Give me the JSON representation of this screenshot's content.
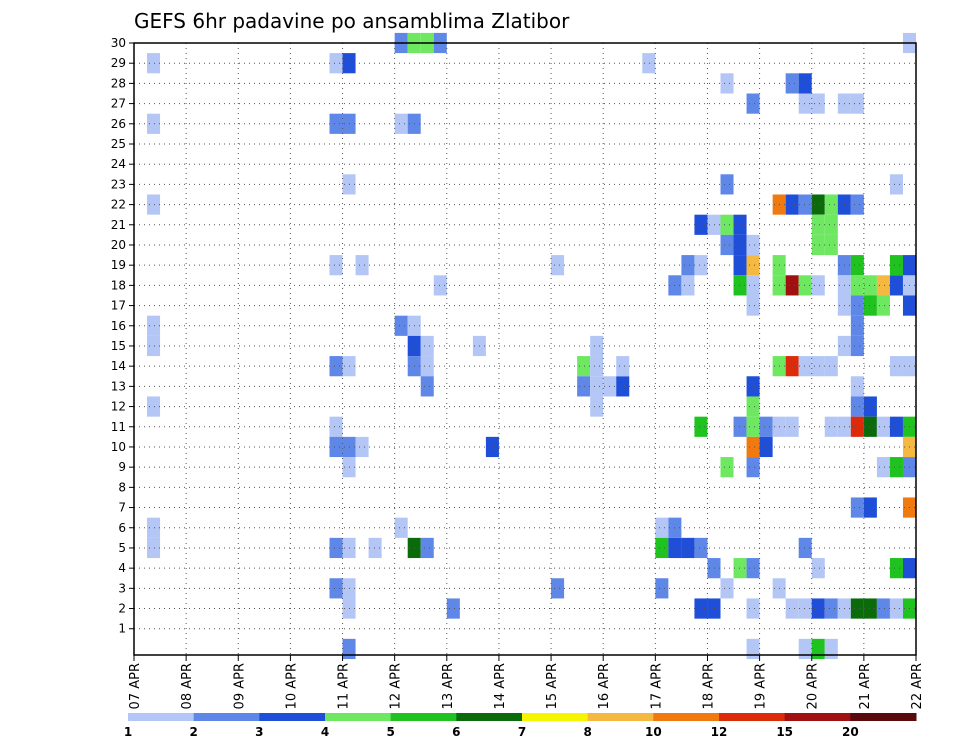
{
  "chart_data": {
    "type": "heatmap",
    "title": "GEFS 6hr padavine po ansamblima Zlatibor",
    "y_ticks": [
      "1",
      "2",
      "3",
      "4",
      "5",
      "6",
      "7",
      "8",
      "9",
      "10",
      "11",
      "12",
      "13",
      "14",
      "15",
      "16",
      "17",
      "18",
      "19",
      "20",
      "21",
      "22",
      "23",
      "24",
      "25",
      "26",
      "27",
      "28",
      "29",
      "30"
    ],
    "x_ticks": [
      "07 APR",
      "08 APR",
      "09 APR",
      "10 APR",
      "11 APR",
      "12 APR",
      "13 APR",
      "14 APR",
      "15 APR",
      "16 APR",
      "17 APR",
      "18 APR",
      "19 APR",
      "20 APR",
      "21 APR",
      "22 APR"
    ],
    "x_range_days": [
      7,
      22
    ],
    "y_range": [
      0,
      30
    ],
    "step_hours": 6,
    "grid": true,
    "colorbar": {
      "labels": [
        "1",
        "2",
        "3",
        "4",
        "5",
        "6",
        "7",
        "8",
        "10",
        "12",
        "15",
        "20"
      ],
      "colors": [
        "#b3c6f5",
        "#5f87e8",
        "#1f4fd8",
        "#6ee860",
        "#1fc21f",
        "#0b6b0b",
        "#f5f500",
        "#f5b840",
        "#f07a10",
        "#dc2a0a",
        "#a01010",
        "#5a0a0a"
      ]
    },
    "cells": [
      [
        7.25,
        29,
        1
      ],
      [
        7.25,
        26,
        1
      ],
      [
        7.25,
        22,
        1
      ],
      [
        7.25,
        16,
        1
      ],
      [
        7.25,
        15,
        1
      ],
      [
        7.25,
        12,
        1
      ],
      [
        7.25,
        6,
        1
      ],
      [
        7.25,
        5,
        1
      ],
      [
        10.75,
        29,
        1
      ],
      [
        11.0,
        29,
        3
      ],
      [
        10.75,
        26,
        2
      ],
      [
        11.0,
        26,
        2
      ],
      [
        11.0,
        23,
        1
      ],
      [
        10.75,
        19,
        1
      ],
      [
        11.25,
        19,
        1
      ],
      [
        10.75,
        14,
        2
      ],
      [
        11.0,
        14,
        1
      ],
      [
        10.75,
        11,
        1
      ],
      [
        10.75,
        10,
        2
      ],
      [
        11.0,
        10,
        2
      ],
      [
        11.25,
        10,
        1
      ],
      [
        11.0,
        9,
        1
      ],
      [
        10.75,
        5,
        2
      ],
      [
        11.0,
        5,
        1
      ],
      [
        11.5,
        5,
        1
      ],
      [
        10.75,
        3,
        2
      ],
      [
        11.0,
        3,
        1
      ],
      [
        11.0,
        2,
        1
      ],
      [
        11.0,
        0,
        2
      ],
      [
        12.0,
        30,
        2
      ],
      [
        12.25,
        30,
        4
      ],
      [
        12.5,
        30,
        4
      ],
      [
        12.75,
        30,
        2
      ],
      [
        12.0,
        26,
        1
      ],
      [
        12.25,
        26,
        2
      ],
      [
        12.75,
        18,
        1
      ],
      [
        12.0,
        16,
        2
      ],
      [
        12.25,
        16,
        1
      ],
      [
        12.25,
        15,
        3
      ],
      [
        12.5,
        15,
        1
      ],
      [
        12.5,
        14,
        1
      ],
      [
        12.25,
        14,
        2
      ],
      [
        12.5,
        13,
        2
      ],
      [
        12.0,
        6,
        1
      ],
      [
        12.25,
        5,
        6
      ],
      [
        12.5,
        5,
        2
      ],
      [
        13.0,
        2,
        2
      ],
      [
        13.5,
        15,
        1
      ],
      [
        13.75,
        10,
        3
      ],
      [
        15.0,
        19,
        1
      ],
      [
        15.0,
        3,
        2
      ],
      [
        15.5,
        14,
        4
      ],
      [
        15.75,
        14,
        1
      ],
      [
        15.75,
        15,
        1
      ],
      [
        15.5,
        13,
        2
      ],
      [
        15.75,
        13,
        1
      ],
      [
        16.0,
        13,
        1
      ],
      [
        16.25,
        13,
        3
      ],
      [
        15.75,
        12,
        1
      ],
      [
        16.25,
        14,
        1
      ],
      [
        16.75,
        29,
        1
      ],
      [
        17.0,
        6,
        1
      ],
      [
        17.0,
        5,
        5
      ],
      [
        17.25,
        5,
        3
      ],
      [
        17.5,
        5,
        3
      ],
      [
        17.75,
        5,
        2
      ],
      [
        17.25,
        6,
        2
      ],
      [
        17.0,
        3,
        2
      ],
      [
        17.25,
        18,
        2
      ],
      [
        17.5,
        18,
        1
      ],
      [
        17.5,
        19,
        2
      ],
      [
        17.75,
        19,
        1
      ],
      [
        17.75,
        21,
        3
      ],
      [
        17.75,
        11,
        5
      ],
      [
        18.0,
        21,
        1
      ],
      [
        18.0,
        4,
        2
      ],
      [
        17.75,
        2,
        3
      ],
      [
        18.0,
        2,
        3
      ],
      [
        18.25,
        28,
        1
      ],
      [
        18.25,
        23,
        2
      ],
      [
        18.25,
        21,
        4
      ],
      [
        18.5,
        21,
        3
      ],
      [
        18.25,
        20,
        2
      ],
      [
        18.5,
        20,
        3
      ],
      [
        18.5,
        19,
        3
      ],
      [
        18.75,
        19,
        8
      ],
      [
        18.5,
        18,
        5
      ],
      [
        18.75,
        18,
        1
      ],
      [
        18.75,
        17,
        1
      ],
      [
        18.75,
        20,
        1
      ],
      [
        18.25,
        9,
        4
      ],
      [
        18.25,
        3,
        1
      ],
      [
        18.5,
        4,
        4
      ],
      [
        18.75,
        4,
        2
      ],
      [
        18.5,
        11,
        2
      ],
      [
        18.75,
        11,
        4
      ],
      [
        18.75,
        12,
        4
      ],
      [
        18.75,
        10,
        9
      ],
      [
        19.0,
        11,
        2
      ],
      [
        19.0,
        10,
        3
      ],
      [
        18.75,
        9,
        2
      ],
      [
        18.75,
        2,
        1
      ],
      [
        18.75,
        0,
        1
      ],
      [
        18.75,
        27,
        2
      ],
      [
        18.75,
        13,
        3
      ],
      [
        19.25,
        22,
        9
      ],
      [
        19.5,
        22,
        3
      ],
      [
        19.75,
        22,
        2
      ],
      [
        20.0,
        22,
        6
      ],
      [
        20.25,
        22,
        4
      ],
      [
        20.5,
        22,
        3
      ],
      [
        20.75,
        22,
        2
      ],
      [
        19.25,
        19,
        4
      ],
      [
        19.25,
        18,
        4
      ],
      [
        19.5,
        18,
        11
      ],
      [
        19.75,
        18,
        4
      ],
      [
        20.0,
        18,
        1
      ],
      [
        19.25,
        14,
        4
      ],
      [
        19.5,
        14,
        10
      ],
      [
        19.75,
        14,
        1
      ],
      [
        20.0,
        14,
        1
      ],
      [
        20.25,
        14,
        1
      ],
      [
        20.0,
        21,
        4
      ],
      [
        20.25,
        21,
        4
      ],
      [
        20.0,
        20,
        4
      ],
      [
        20.25,
        20,
        4
      ],
      [
        19.5,
        28,
        2
      ],
      [
        19.75,
        28,
        3
      ],
      [
        19.75,
        27,
        1
      ],
      [
        20.0,
        27,
        1
      ],
      [
        20.5,
        27,
        1
      ],
      [
        20.75,
        27,
        1
      ],
      [
        19.25,
        11,
        1
      ],
      [
        19.5,
        11,
        1
      ],
      [
        20.25,
        11,
        1
      ],
      [
        19.75,
        5,
        2
      ],
      [
        20.0,
        4,
        1
      ],
      [
        19.25,
        3,
        1
      ],
      [
        19.5,
        2,
        1
      ],
      [
        19.75,
        2,
        1
      ],
      [
        20.0,
        2,
        3
      ],
      [
        20.25,
        2,
        2
      ],
      [
        20.5,
        2,
        1
      ],
      [
        20.75,
        2,
        6
      ],
      [
        21.0,
        2,
        6
      ],
      [
        21.25,
        2,
        2
      ],
      [
        21.5,
        2,
        1
      ],
      [
        21.75,
        2,
        5
      ],
      [
        22.0,
        2,
        6
      ],
      [
        19.75,
        0,
        1
      ],
      [
        20.0,
        0,
        5
      ],
      [
        20.25,
        0,
        1
      ],
      [
        20.5,
        19,
        2
      ],
      [
        20.75,
        19,
        5
      ],
      [
        20.5,
        18,
        1
      ],
      [
        20.75,
        18,
        4
      ],
      [
        20.5,
        17,
        1
      ],
      [
        20.75,
        17,
        2
      ],
      [
        20.75,
        16,
        2
      ],
      [
        20.5,
        15,
        1
      ],
      [
        20.75,
        15,
        2
      ],
      [
        20.75,
        13,
        1
      ],
      [
        20.75,
        12,
        2
      ],
      [
        21.0,
        12,
        3
      ],
      [
        20.5,
        11,
        1
      ],
      [
        20.75,
        11,
        10
      ],
      [
        21.0,
        11,
        6
      ],
      [
        21.25,
        11,
        1
      ],
      [
        21.5,
        11,
        3
      ],
      [
        21.75,
        11,
        5
      ],
      [
        22.0,
        11,
        3
      ],
      [
        21.0,
        18,
        4
      ],
      [
        21.25,
        18,
        8
      ],
      [
        21.5,
        18,
        3
      ],
      [
        21.75,
        18,
        1
      ],
      [
        22.0,
        18,
        1
      ],
      [
        21.0,
        17,
        5
      ],
      [
        21.25,
        17,
        4
      ],
      [
        21.75,
        17,
        3
      ],
      [
        22.0,
        17,
        8
      ],
      [
        21.5,
        19,
        5
      ],
      [
        21.75,
        19,
        3
      ],
      [
        21.5,
        23,
        1
      ],
      [
        21.75,
        30,
        1
      ],
      [
        22.0,
        29,
        1
      ],
      [
        22.0,
        25,
        2
      ],
      [
        21.5,
        14,
        1
      ],
      [
        21.75,
        14,
        1
      ],
      [
        21.75,
        10,
        8
      ],
      [
        22.0,
        10,
        4
      ],
      [
        21.25,
        9,
        1
      ],
      [
        21.5,
        9,
        5
      ],
      [
        21.75,
        9,
        2
      ],
      [
        20.75,
        7,
        2
      ],
      [
        21.0,
        7,
        3
      ],
      [
        21.75,
        7,
        9
      ],
      [
        21.5,
        4,
        5
      ],
      [
        21.75,
        4,
        3
      ],
      [
        22.0,
        3,
        1
      ],
      [
        22.0,
        0,
        11
      ]
    ]
  }
}
